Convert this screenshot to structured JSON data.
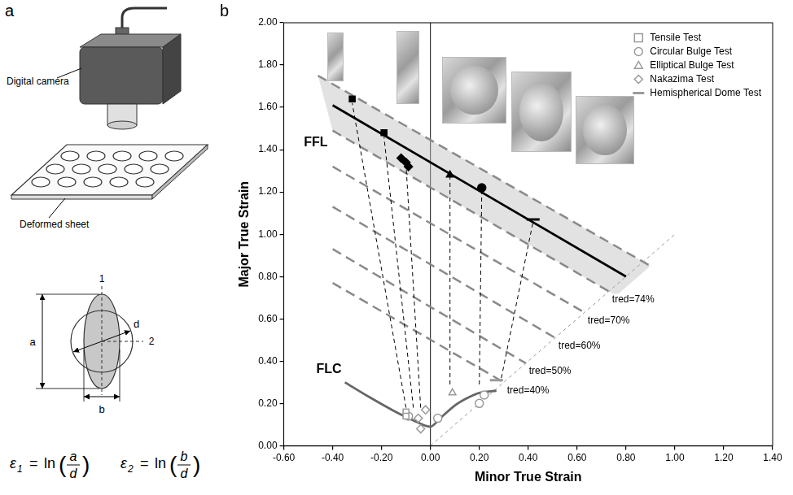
{
  "diagram": {
    "panel_label": "a",
    "camera_label": "Digital camera",
    "sheet_label": "Deformed sheet",
    "principal_directions": [
      "1",
      "2"
    ],
    "dimensions": {
      "major": "a",
      "minor": "b",
      "initial": "d"
    },
    "formulas": [
      {
        "symbol": "ε",
        "index": "1",
        "equals": "=",
        "function": "ln",
        "open": "(",
        "numerator": "a",
        "denominator": "d",
        "close": ")"
      },
      {
        "symbol": "ε",
        "index": "2",
        "equals": "=",
        "function": "ln",
        "open": "(",
        "numerator": "b",
        "denominator": "d",
        "close": ")"
      }
    ]
  },
  "chart_data": {
    "type": "scatter",
    "panel_label": "b",
    "x_label": "Minor True Strain",
    "y_label": "Major True Strain",
    "xlim": [
      -0.6,
      1.4
    ],
    "xticks": [
      {
        "value": -0.6,
        "label": "-0.60"
      },
      {
        "value": -0.4,
        "label": "-0.40"
      },
      {
        "value": -0.2,
        "label": "-0.20"
      },
      {
        "value": 0,
        "label": "0.00"
      },
      {
        "value": 0.2,
        "label": "0.20"
      },
      {
        "value": 0.4,
        "label": "0.40"
      },
      {
        "value": 0.6,
        "label": "0.60"
      },
      {
        "value": 0.8,
        "label": "0.80"
      },
      {
        "value": 1.0,
        "label": "1.00"
      },
      {
        "value": 1.2,
        "label": "1.20"
      },
      {
        "value": 1.4,
        "label": "1.40"
      }
    ],
    "ylim": [
      0,
      2
    ],
    "yticks": [
      {
        "value": 0,
        "label": "0.00"
      },
      {
        "value": 0.2,
        "label": "0.20"
      },
      {
        "value": 0.4,
        "label": "0.40"
      },
      {
        "value": 0.6,
        "label": "0.60"
      },
      {
        "value": 0.8,
        "label": "0.80"
      },
      {
        "value": 1.0,
        "label": "1.00"
      },
      {
        "value": 1.2,
        "label": "1.20"
      },
      {
        "value": 1.4,
        "label": "1.40"
      },
      {
        "value": 1.6,
        "label": "1.60"
      },
      {
        "value": 1.8,
        "label": "1.80"
      },
      {
        "value": 2.0,
        "label": "2.00"
      }
    ],
    "grid": false,
    "legend": "top-right",
    "series": [
      {
        "name": "Tensile Test",
        "marker": "square",
        "color": "#9a9a9a",
        "necking": [
          [
            -0.1,
            0.16
          ],
          [
            -0.1,
            0.14
          ]
        ],
        "fracture": [
          [
            -0.32,
            1.64
          ],
          [
            -0.19,
            1.48
          ]
        ]
      },
      {
        "name": "Circular Bulge Test",
        "marker": "circle",
        "color": "#9a9a9a",
        "necking": [
          [
            -0.09,
            0.14
          ],
          [
            0.03,
            0.13
          ],
          [
            0.2,
            0.2
          ],
          [
            0.22,
            0.24
          ]
        ],
        "fracture": [
          [
            0.21,
            1.22
          ]
        ]
      },
      {
        "name": "Elliptical Bulge Test",
        "marker": "triangle",
        "color": "#9a9a9a",
        "necking": [
          [
            0.09,
            0.25
          ]
        ],
        "fracture": [
          [
            0.08,
            1.28
          ]
        ]
      },
      {
        "name": "Nakazima Test",
        "marker": "diamond",
        "color": "#9a9a9a",
        "necking": [
          [
            -0.05,
            0.13
          ],
          [
            -0.04,
            0.08
          ],
          [
            -0.02,
            0.17
          ]
        ],
        "fracture": [
          [
            -0.12,
            1.36
          ],
          [
            -0.1,
            1.34
          ],
          [
            -0.09,
            1.32
          ]
        ]
      },
      {
        "name": "Hemispherical Dome Test",
        "marker": "dash",
        "color": "#9a9a9a",
        "necking": [
          [
            0.27,
            0.31
          ]
        ],
        "fracture": [
          [
            0.42,
            1.07
          ]
        ]
      }
    ],
    "curves": [
      {
        "name": "FLC",
        "color": "#666666",
        "line_style": "solid",
        "points": [
          [
            -0.35,
            0.3
          ],
          [
            -0.25,
            0.23
          ],
          [
            -0.15,
            0.165
          ],
          [
            -0.07,
            0.12
          ],
          [
            0.0,
            0.09
          ],
          [
            0.04,
            0.13
          ],
          [
            0.1,
            0.19
          ],
          [
            0.15,
            0.225
          ],
          [
            0.2,
            0.25
          ],
          [
            0.27,
            0.26
          ]
        ]
      },
      {
        "name": "FFL",
        "color": "#000000",
        "line_style": "solid",
        "points": [
          [
            -0.4,
            1.61
          ],
          [
            0.8,
            0.8
          ]
        ]
      }
    ],
    "fracture_band": {
      "upper": [
        [
          -0.46,
          1.75
        ],
        [
          0.9,
          0.85
        ]
      ],
      "lower": [
        [
          -0.4,
          1.49
        ],
        [
          0.76,
          0.71
        ]
      ]
    },
    "thickness_reduction_lines": [
      {
        "label": "tred=74%",
        "points": [
          [
            -0.4,
            1.49
          ],
          [
            0.73,
            0.73
          ]
        ]
      },
      {
        "label": "tred=70%",
        "points": [
          [
            -0.4,
            1.32
          ],
          [
            0.63,
            0.63
          ]
        ]
      },
      {
        "label": "tred=60%",
        "points": [
          [
            -0.4,
            1.13
          ],
          [
            0.51,
            0.51
          ]
        ]
      },
      {
        "label": "tred=50%",
        "points": [
          [
            -0.4,
            0.93
          ],
          [
            0.39,
            0.39
          ]
        ]
      },
      {
        "label": "tred=40%",
        "points": [
          [
            -0.4,
            0.77
          ],
          [
            0.3,
            0.3
          ]
        ]
      }
    ],
    "strain_paths": [
      [
        [
          -0.1,
          0.18
        ],
        [
          -0.32,
          1.62
        ]
      ],
      [
        [
          -0.07,
          0.18
        ],
        [
          -0.19,
          1.46
        ]
      ],
      [
        [
          -0.04,
          0.18
        ],
        [
          -0.1,
          1.33
        ]
      ],
      [
        [
          0.08,
          0.29
        ],
        [
          0.08,
          1.27
        ]
      ],
      [
        [
          0.2,
          0.29
        ],
        [
          0.21,
          1.21
        ]
      ],
      [
        [
          0.29,
          0.32
        ],
        [
          0.42,
          1.06
        ]
      ]
    ],
    "equibiaxial_line": [
      [
        0,
        0
      ],
      [
        1.0,
        1.0
      ]
    ]
  }
}
